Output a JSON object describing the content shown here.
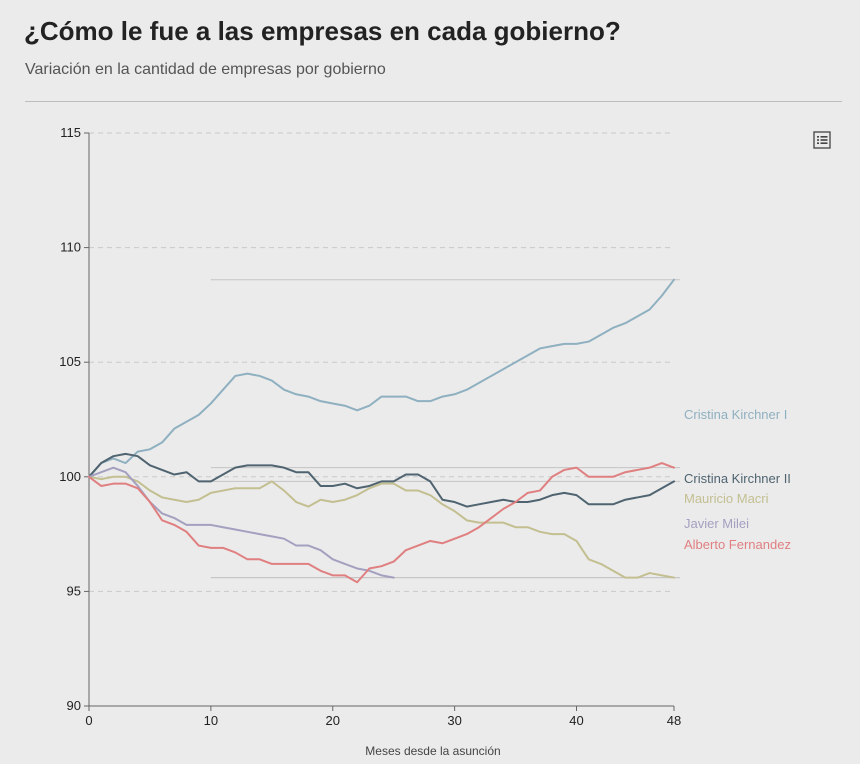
{
  "header": {
    "title": "¿Cómo le fue a las empresas en cada gobierno?",
    "subtitle": "Variación en la cantidad de empresas por gobierno"
  },
  "toolbar": {
    "menu_icon": "list-icon"
  },
  "chart_data": {
    "type": "line",
    "xlabel": "Meses desde la asunción",
    "ylabel": "",
    "xlim": [
      0,
      48
    ],
    "ylim": [
      90,
      115
    ],
    "x_ticks": [
      0,
      10,
      20,
      30,
      40,
      48
    ],
    "y_ticks": [
      90,
      95,
      100,
      105,
      110,
      115
    ],
    "grid": "horizontal dashed",
    "series": [
      {
        "name": "Cristina Kirchner I",
        "color": "#8fb0c0",
        "values": [
          100,
          100.6,
          100.8,
          100.6,
          101.1,
          101.2,
          101.5,
          102.1,
          102.4,
          102.7,
          103.2,
          103.8,
          104.4,
          104.5,
          104.4,
          104.2,
          103.8,
          103.6,
          103.5,
          103.3,
          103.2,
          103.1,
          102.9,
          103.1,
          103.5,
          103.5,
          103.5,
          103.3,
          103.3,
          103.5,
          103.6,
          103.8,
          104.1,
          104.4,
          104.7,
          105.0,
          105.3,
          105.6,
          105.7,
          105.8,
          105.8,
          105.9,
          106.2,
          106.5,
          106.7,
          107.0,
          107.3,
          107.9,
          108.6
        ]
      },
      {
        "name": "Cristina Kirchner II",
        "color": "#4f6470",
        "values": [
          100,
          100.6,
          100.9,
          101.0,
          100.9,
          100.5,
          100.3,
          100.1,
          100.2,
          99.8,
          99.8,
          100.1,
          100.4,
          100.5,
          100.5,
          100.5,
          100.4,
          100.2,
          100.2,
          99.6,
          99.6,
          99.7,
          99.5,
          99.6,
          99.8,
          99.8,
          100.1,
          100.1,
          99.8,
          99.0,
          98.9,
          98.7,
          98.8,
          98.9,
          99.0,
          98.9,
          98.9,
          99.0,
          99.2,
          99.3,
          99.2,
          98.8,
          98.8,
          98.8,
          99.0,
          99.1,
          99.2,
          99.5,
          99.8
        ]
      },
      {
        "name": "Mauricio Macri",
        "color": "#c3bf91",
        "values": [
          100,
          99.9,
          100.0,
          100.0,
          99.8,
          99.4,
          99.1,
          99.0,
          98.9,
          99.0,
          99.3,
          99.4,
          99.5,
          99.5,
          99.5,
          99.8,
          99.4,
          98.9,
          98.7,
          99.0,
          98.9,
          99.0,
          99.2,
          99.5,
          99.7,
          99.7,
          99.4,
          99.4,
          99.2,
          98.8,
          98.5,
          98.1,
          98.0,
          98.0,
          98.0,
          97.8,
          97.8,
          97.6,
          97.5,
          97.5,
          97.2,
          96.4,
          96.2,
          95.9,
          95.6,
          95.6,
          95.8,
          95.7,
          95.6
        ]
      },
      {
        "name": "Javier Milei",
        "color": "#a3a0c0",
        "values": [
          100,
          100.2,
          100.4,
          100.2,
          99.6,
          98.9,
          98.4,
          98.2,
          97.9,
          97.9,
          97.9,
          97.8,
          97.7,
          97.6,
          97.5,
          97.4,
          97.3,
          97.0,
          97.0,
          96.8,
          96.4,
          96.2,
          96.0,
          95.9,
          95.7,
          95.6
        ]
      },
      {
        "name": "Alberto Fernandez",
        "color": "#e07f80",
        "values": [
          100,
          99.6,
          99.7,
          99.7,
          99.5,
          98.9,
          98.1,
          97.9,
          97.6,
          97.0,
          96.9,
          96.9,
          96.7,
          96.4,
          96.4,
          96.2,
          96.2,
          96.2,
          96.2,
          95.9,
          95.7,
          95.7,
          95.4,
          96.0,
          96.1,
          96.3,
          96.8,
          97.0,
          97.2,
          97.1,
          97.3,
          97.5,
          97.8,
          98.2,
          98.6,
          98.9,
          99.3,
          99.4,
          100.0,
          100.3,
          100.4,
          100.0,
          100.0,
          100.0,
          100.2,
          100.3,
          100.4,
          100.6,
          100.4
        ]
      }
    ]
  }
}
